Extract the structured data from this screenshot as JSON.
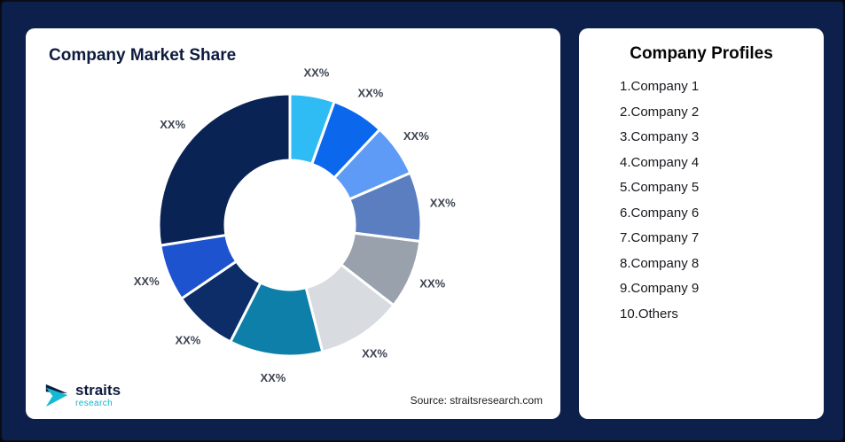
{
  "frame": {
    "background": "#0D204C"
  },
  "chart_card": {
    "title": "Company Market Share",
    "source": "Source: straitsresearch.com"
  },
  "logo": {
    "name": "straits",
    "sub": "research"
  },
  "profiles_card": {
    "title": "Company Profiles",
    "items": [
      "1.Company 1",
      "2.Company 2",
      "3.Company 3",
      "4.Company 4",
      "5.Company 5",
      "6.Company 6",
      "7.Company 7",
      "8.Company 8",
      "9.Company 9",
      "10.Others"
    ]
  },
  "chart_data": {
    "type": "pie",
    "subtype": "donut",
    "title": "Company Market Share",
    "categories": [
      "Company 1",
      "Company 2",
      "Company 3",
      "Company 4",
      "Company 5",
      "Company 6",
      "Company 7",
      "Company 8",
      "Company 9",
      "Others"
    ],
    "values": [
      5.5,
      6.5,
      6.5,
      8.5,
      8.5,
      10.5,
      11.5,
      8,
      7,
      27.5
    ],
    "values_note": "slice sizes estimated from arc angles; chart shows placeholder labels only",
    "data_labels": [
      "XX%",
      "XX%",
      "XX%",
      "XX%",
      "XX%",
      "XX%",
      "XX%",
      "XX%",
      "XX%",
      "XX%"
    ],
    "colors": [
      "#2FBCF4",
      "#0B67EC",
      "#5D9BF7",
      "#5B7EC1",
      "#99A1AD",
      "#D8DCE1",
      "#0E7FA8",
      "#0C2D68",
      "#1E53CF",
      "#0A2355"
    ],
    "start_angle_deg": 0,
    "direction": "clockwise",
    "legend": "none",
    "inner_radius_ratio": 0.49,
    "source": "straitsresearch.com"
  }
}
